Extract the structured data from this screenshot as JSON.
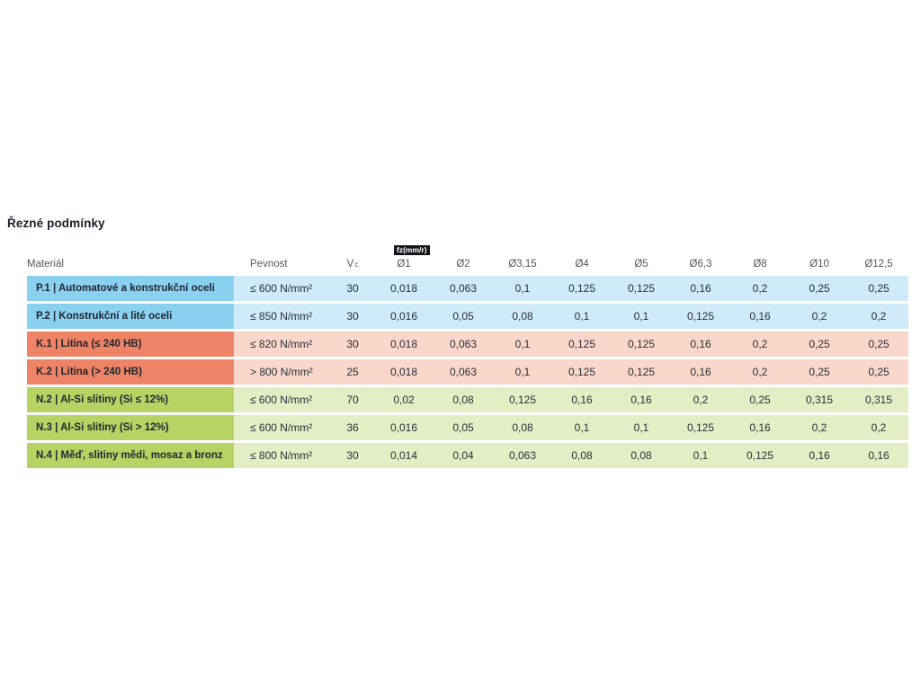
{
  "page": {
    "title": "Řezné podmínky",
    "background": "#ffffff"
  },
  "table": {
    "header": {
      "material": "Materiál",
      "pevnost": "Pevnost",
      "vc_main": "V",
      "vc_sub": "c",
      "fz_unit": "fz(mm/r)",
      "diameters": [
        "Ø1",
        "Ø2",
        "Ø3,15",
        "Ø4",
        "Ø5",
        "Ø6,3",
        "Ø8",
        "Ø10",
        "Ø12,5"
      ]
    },
    "rows": [
      {
        "group": "P",
        "material": "P.1 | Automatové a konstrukční oceli",
        "pevnost": "≤ 600 N/mm²",
        "vc": "30",
        "fz": [
          "0,018",
          "0,063",
          "0,1",
          "0,125",
          "0,125",
          "0,16",
          "0,2",
          "0,25",
          "0,25"
        ]
      },
      {
        "group": "P",
        "material": "P.2 | Konstrukční a lité oceli",
        "pevnost": "≤ 850 N/mm²",
        "vc": "30",
        "fz": [
          "0,016",
          "0,05",
          "0,08",
          "0,1",
          "0,1",
          "0,125",
          "0,16",
          "0,2",
          "0,2"
        ]
      },
      {
        "group": "K",
        "material": "K.1 | Litina (≤ 240 HB)",
        "pevnost": "≤ 820 N/mm²",
        "vc": "30",
        "fz": [
          "0,018",
          "0,063",
          "0,1",
          "0,125",
          "0,125",
          "0,16",
          "0,2",
          "0,25",
          "0,25"
        ]
      },
      {
        "group": "K",
        "material": "K.2 | Litina (> 240 HB)",
        "pevnost": "> 800 N/mm²",
        "vc": "25",
        "fz": [
          "0,018",
          "0,063",
          "0,1",
          "0,125",
          "0,125",
          "0,16",
          "0,2",
          "0,25",
          "0,25"
        ]
      },
      {
        "group": "N",
        "material": "N.2 | Al-Si slitiny (Si ≤ 12%)",
        "pevnost": "≤ 600 N/mm²",
        "vc": "70",
        "fz": [
          "0,02",
          "0,08",
          "0,125",
          "0,16",
          "0,16",
          "0,2",
          "0,25",
          "0,315",
          "0,315"
        ]
      },
      {
        "group": "N",
        "material": "N.3 | Al-Si slitiny (Si > 12%)",
        "pevnost": "≤ 600 N/mm²",
        "vc": "36",
        "fz": [
          "0,016",
          "0,05",
          "0,08",
          "0,1",
          "0,1",
          "0,125",
          "0,16",
          "0,2",
          "0,2"
        ]
      },
      {
        "group": "N",
        "material": "N.4 | Měď, slitiny mědi, mosaz a bronz",
        "pevnost": "≤ 800 N/mm²",
        "vc": "30",
        "fz": [
          "0,014",
          "0,04",
          "0,063",
          "0,08",
          "0,08",
          "0,1",
          "0,125",
          "0,16",
          "0,16"
        ]
      }
    ],
    "colors": {
      "steel_label_bg": "#8AD1EF",
      "steel_row_bg": "#CFEAF8",
      "cast_iron_label_bg": "#EF8365",
      "cast_iron_row_bg": "#F9D7CA",
      "nonferrous_label_bg": "#B5D464",
      "nonferrous_row_bg": "#E4EEC5",
      "fz_badge_bg": "#15151C",
      "fz_badge_text": "#FFFFFF"
    }
  }
}
